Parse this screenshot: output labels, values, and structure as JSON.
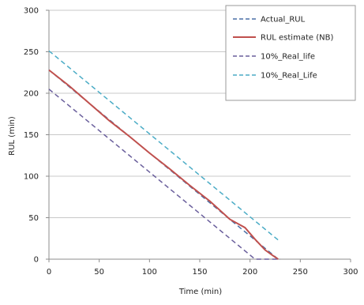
{
  "chart_data": {
    "type": "line",
    "title": "",
    "xlabel": "Time (min)",
    "ylabel": "RUL (min)",
    "xlim": [
      0,
      300
    ],
    "ylim": [
      0,
      300
    ],
    "xticks": [
      0,
      50,
      100,
      150,
      200,
      250,
      300
    ],
    "yticks": [
      0,
      50,
      100,
      150,
      200,
      250,
      300
    ],
    "x_tick_labels": [
      "0",
      "50",
      "100",
      "150",
      "200",
      "250",
      "300"
    ],
    "y_tick_labels": [
      "0",
      "50",
      "100",
      "150",
      "200",
      "250",
      "300"
    ],
    "grid": "horizontal",
    "legend_position": "top-right",
    "series": [
      {
        "name": "Actual_RUL",
        "color": "#4a6fa5",
        "style": "dashed",
        "x": [
          0,
          25,
          50,
          75,
          100,
          125,
          150,
          175,
          200,
          228
        ],
        "y": [
          228,
          203,
          178,
          153,
          128,
          103,
          78,
          53,
          28,
          0
        ]
      },
      {
        "name": "RUL estimate (NB)",
        "color": "#c0504d",
        "style": "solid",
        "x": [
          0,
          20,
          40,
          60,
          80,
          100,
          120,
          140,
          160,
          180,
          195,
          205,
          215,
          222,
          228
        ],
        "y": [
          228,
          209,
          188,
          167,
          148,
          128,
          109,
          89,
          70,
          48,
          38,
          24,
          11,
          5,
          0
        ]
      },
      {
        "name": "10%_Real_life",
        "color": "#6a5f9c",
        "style": "dashed",
        "x": [
          0,
          205,
          230
        ],
        "y": [
          205,
          0,
          0
        ]
      },
      {
        "name": "10%_Real_Life",
        "color": "#4bacc6",
        "style": "dashed",
        "x": [
          0,
          230
        ],
        "y": [
          251,
          21
        ]
      }
    ]
  }
}
